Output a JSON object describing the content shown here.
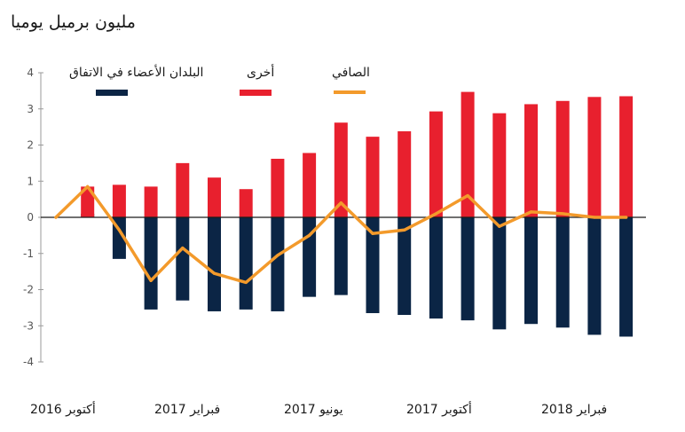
{
  "chart_data": {
    "type": "bar",
    "title": "مليون برميل يوميا",
    "ylim": [
      -4,
      4
    ],
    "yticks": [
      "4",
      "3",
      "2",
      "1",
      "0",
      "-1",
      "-2",
      "-3",
      "-4"
    ],
    "x_labels": [
      "أكتوبر 2016",
      "فبراير 2017",
      "يونيو 2017",
      "أكتوبر 2017",
      "فبراير 2018"
    ],
    "legend_placement": "top",
    "categories": [
      "2016-10",
      "2016-11",
      "2016-12",
      "2017-01",
      "2017-02",
      "2017-03",
      "2017-04",
      "2017-05",
      "2017-06",
      "2017-07",
      "2017-08",
      "2017-09",
      "2017-10",
      "2017-11",
      "2017-12",
      "2018-01",
      "2018-02",
      "2018-03",
      "2018-04"
    ],
    "series": [
      {
        "name": "البلدان الأعضاء في الاتفاق",
        "type": "bar",
        "color": "#0b2545",
        "values": [
          0.0,
          0.1,
          -1.15,
          -2.55,
          -2.3,
          -2.6,
          -2.55,
          -2.6,
          -2.2,
          -2.15,
          -2.65,
          -2.7,
          -2.8,
          -2.85,
          -3.1,
          -2.95,
          -3.05,
          -3.25,
          -3.3
        ]
      },
      {
        "name": "أخرى",
        "type": "bar",
        "color": "#e8202e",
        "values": [
          0.0,
          0.85,
          0.9,
          0.85,
          1.5,
          1.1,
          0.78,
          1.62,
          1.78,
          2.62,
          2.23,
          2.38,
          2.93,
          3.47,
          2.88,
          3.13,
          3.22,
          3.33,
          3.35
        ]
      },
      {
        "name": "الصافي",
        "type": "line",
        "color": "#f39a2b",
        "values": [
          0.0,
          0.85,
          -0.35,
          -1.75,
          -0.85,
          -1.55,
          -1.8,
          -1.05,
          -0.5,
          0.4,
          -0.45,
          -0.35,
          0.1,
          0.6,
          -0.25,
          0.15,
          0.1,
          0.0,
          0.0
        ]
      }
    ]
  }
}
